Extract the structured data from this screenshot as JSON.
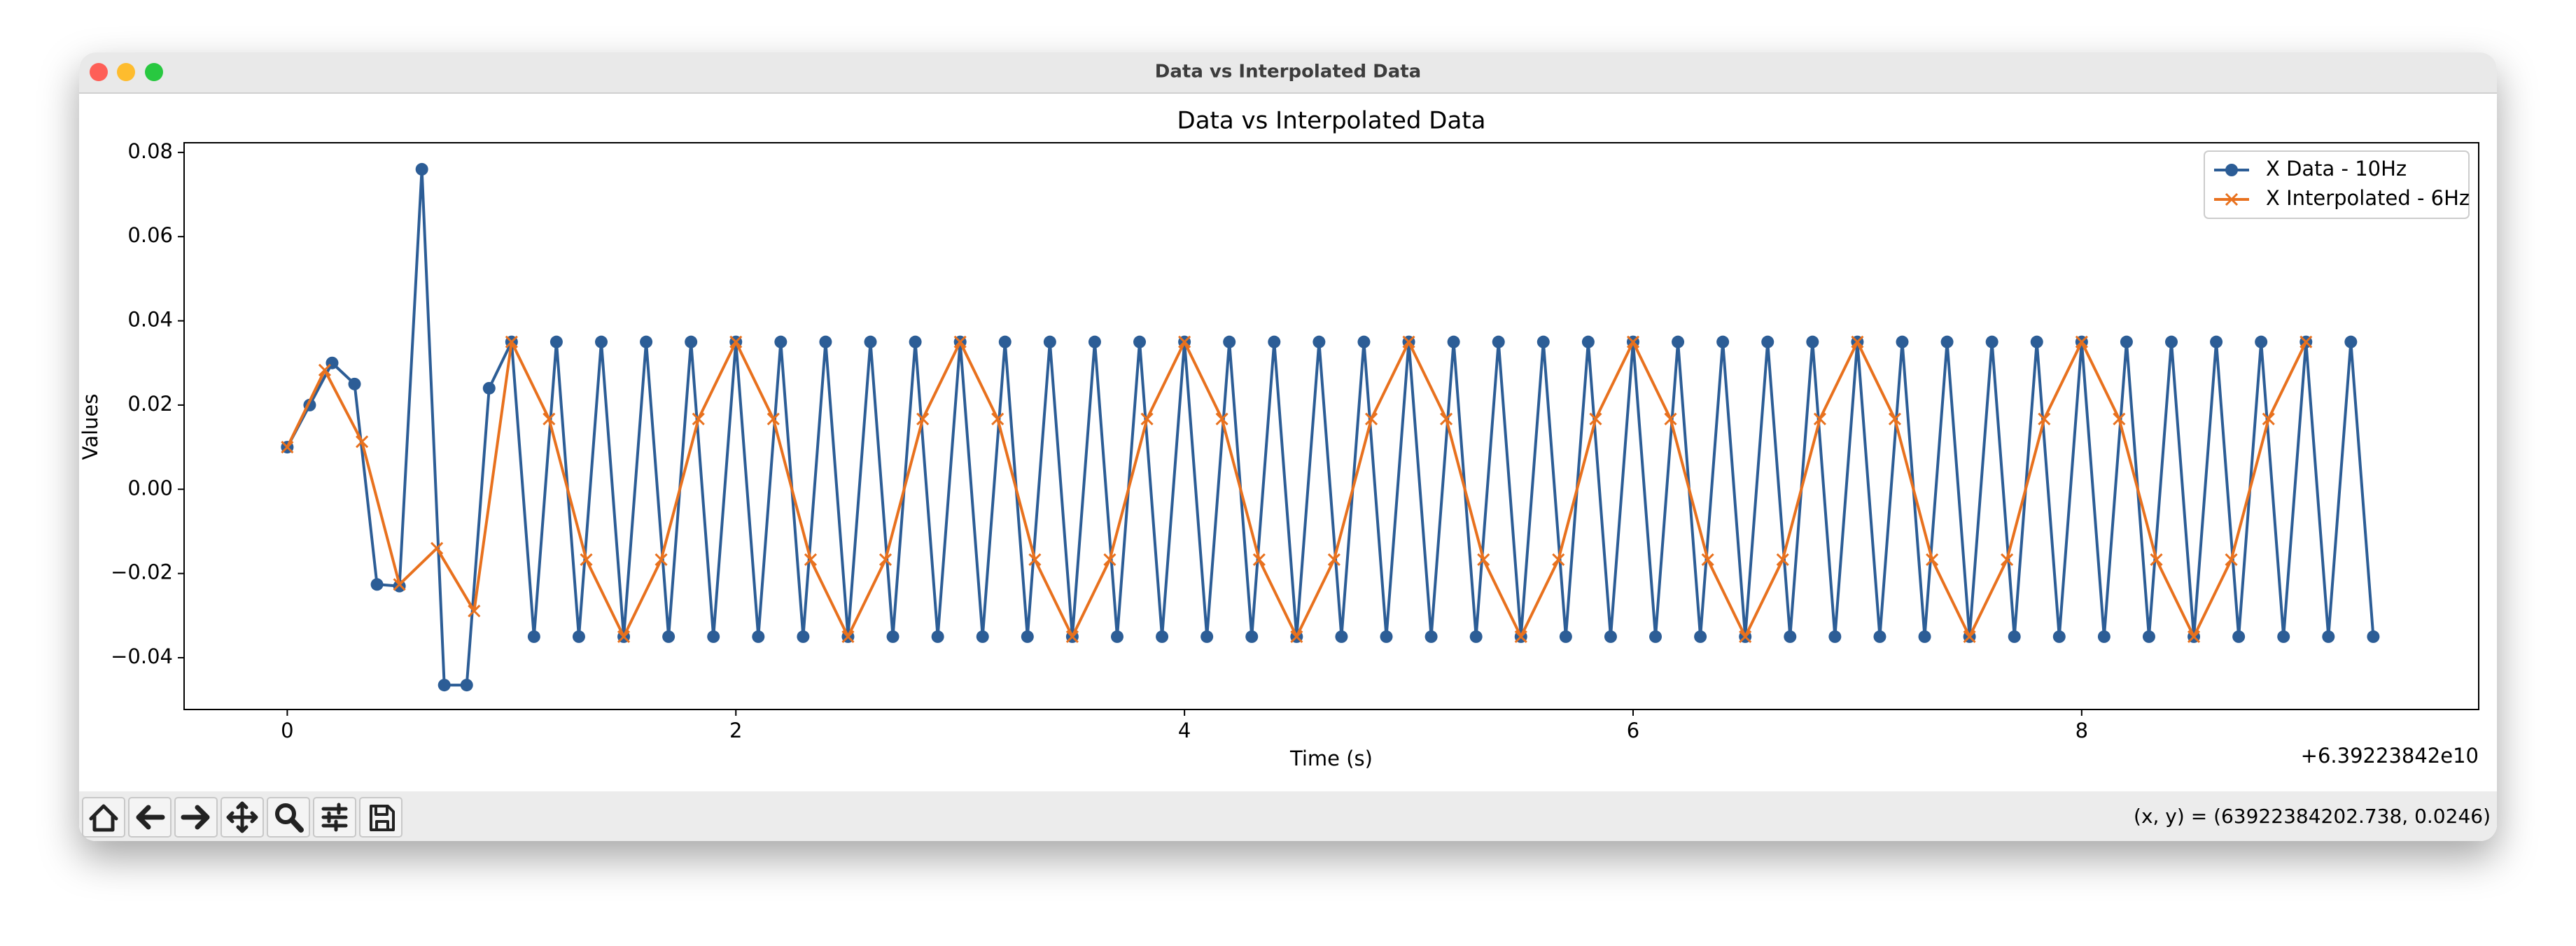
{
  "window": {
    "title": "Data vs Interpolated Data"
  },
  "status": "(x, y) = (63922384202.738, 0.0246)",
  "chart_data": {
    "type": "line",
    "title": "Data vs Interpolated Data",
    "x_label": "Time (s)",
    "y_label": "Values",
    "x_offset_label": "+6.39223842e10",
    "xlim": [
      -0.46,
      9.77
    ],
    "ylim": [
      -0.0523,
      0.0823
    ],
    "xticks": [
      0,
      2,
      4,
      6,
      8
    ],
    "yticks": [
      {
        "value": -0.04,
        "label": "−0.04"
      },
      {
        "value": -0.02,
        "label": "−0.02"
      },
      {
        "value": 0,
        "label": "0.00"
      },
      0.02,
      0.04,
      0.06,
      0.08
    ],
    "legend": "upper right",
    "series": [
      {
        "name": "X Data - 10Hz",
        "color": "#2c5d96",
        "marker": "o",
        "x": [
          0,
          0.1,
          0.2,
          0.3,
          0.4,
          0.5,
          0.6,
          0.7,
          0.8,
          0.9,
          1,
          1.1,
          1.2,
          1.3,
          1.4,
          1.5,
          1.6,
          1.7,
          1.8,
          1.9,
          2,
          2.1,
          2.2,
          2.3,
          2.4,
          2.5,
          2.6,
          2.7,
          2.8,
          2.9,
          3,
          3.1,
          3.2,
          3.3,
          3.4,
          3.5,
          3.6,
          3.7,
          3.8,
          3.9,
          4,
          4.1,
          4.2,
          4.3,
          4.4,
          4.5,
          4.6,
          4.7,
          4.8,
          4.9,
          5,
          5.1,
          5.2,
          5.3,
          5.4,
          5.5,
          5.6,
          5.7,
          5.8,
          5.9,
          6,
          6.1,
          6.2,
          6.3,
          6.4,
          6.5,
          6.6,
          6.7,
          6.8,
          6.9,
          7,
          7.1,
          7.2,
          7.3,
          7.4,
          7.5,
          7.6,
          7.7,
          7.8,
          7.9,
          8,
          8.1,
          8.2,
          8.3,
          8.4,
          8.5,
          8.6,
          8.7,
          8.8,
          8.9,
          9,
          9.1,
          9.2,
          9.3
        ],
        "values": [
          0.01,
          0.02,
          0.03,
          0.025,
          -0.0226,
          -0.023,
          0.076,
          -0.0465,
          -0.0465,
          0.024,
          0.035,
          -0.035,
          0.035,
          -0.035,
          0.035,
          -0.035,
          0.035,
          -0.035,
          0.035,
          -0.035,
          0.035,
          -0.035,
          0.035,
          -0.035,
          0.035,
          -0.035,
          0.035,
          -0.035,
          0.035,
          -0.035,
          0.035,
          -0.035,
          0.035,
          -0.035,
          0.035,
          -0.035,
          0.035,
          -0.035,
          0.035,
          -0.035,
          0.035,
          -0.035,
          0.035,
          -0.035,
          0.035,
          -0.035,
          0.035,
          -0.035,
          0.035,
          -0.035,
          0.035,
          -0.035,
          0.035,
          -0.035,
          0.035,
          -0.035,
          0.035,
          -0.035,
          0.035,
          -0.035,
          0.035,
          -0.035,
          0.035,
          -0.035,
          0.035,
          -0.035,
          0.035,
          -0.035,
          0.035,
          -0.035,
          0.035,
          -0.035,
          0.035,
          -0.035,
          0.035,
          -0.035,
          0.035,
          -0.035,
          0.035,
          -0.035,
          0.035,
          -0.035,
          0.035,
          -0.035,
          0.035,
          -0.035,
          0.035,
          -0.035,
          0.035,
          -0.035,
          0.035,
          -0.035,
          0.035,
          -0.035
        ]
      },
      {
        "name": "X Interpolated - 6Hz",
        "color": "#e8711e",
        "marker": "x",
        "x": [
          0,
          0.167,
          0.333,
          0.5,
          0.667,
          0.833,
          1,
          1.167,
          1.333,
          1.5,
          1.667,
          1.833,
          2,
          2.167,
          2.333,
          2.5,
          2.667,
          2.833,
          3,
          3.167,
          3.333,
          3.5,
          3.667,
          3.833,
          4,
          4.167,
          4.333,
          4.5,
          4.667,
          4.833,
          5,
          5.167,
          5.333,
          5.5,
          5.667,
          5.833,
          6,
          6.167,
          6.333,
          6.5,
          6.667,
          6.833,
          7,
          7.167,
          7.333,
          7.5,
          7.667,
          7.833,
          8,
          8.167,
          8.333,
          8.5,
          8.667,
          8.833,
          9
        ],
        "values": [
          0.01,
          0.0283,
          0.0113,
          -0.0226,
          -0.014,
          -0.0289,
          0.035,
          0.0167,
          -0.0167,
          -0.035,
          -0.0167,
          0.0167,
          0.035,
          0.0167,
          -0.0167,
          -0.035,
          -0.0167,
          0.0167,
          0.035,
          0.0167,
          -0.0167,
          -0.035,
          -0.0167,
          0.0167,
          0.035,
          0.0167,
          -0.0167,
          -0.035,
          -0.0167,
          0.0167,
          0.035,
          0.0167,
          -0.0167,
          -0.035,
          -0.0167,
          0.0167,
          0.035,
          0.0167,
          -0.0167,
          -0.035,
          -0.0167,
          0.0167,
          0.035,
          0.0167,
          -0.0167,
          -0.035,
          -0.0167,
          0.0167,
          0.035,
          0.0167,
          -0.0167,
          -0.035,
          -0.0167,
          0.0167,
          0.035
        ]
      }
    ]
  }
}
